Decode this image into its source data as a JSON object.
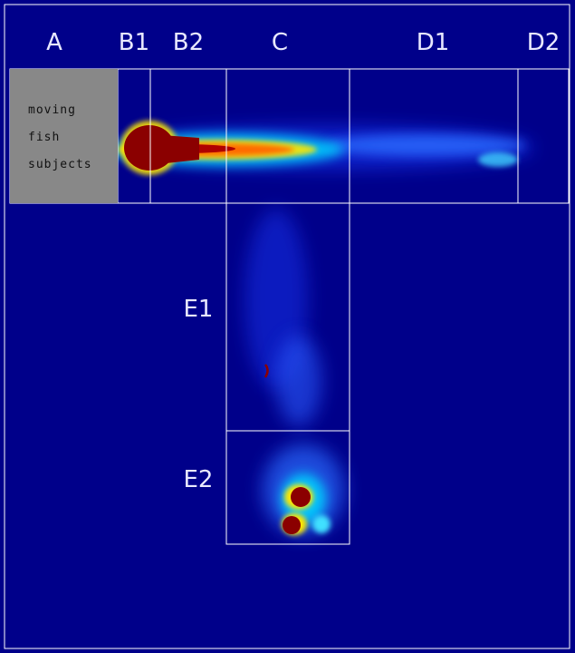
{
  "zones": {
    "A": "A",
    "B1": "B1",
    "B2": "B2",
    "C": "C",
    "D1": "D1",
    "D2": "D2",
    "E1": "E1",
    "E2": "E2"
  },
  "legend": {
    "line1": "moving",
    "line2": "fish",
    "line3": "subjects"
  },
  "colors": {
    "background": "#00008a",
    "grid": "#ffffff",
    "legend_fill": "#888888",
    "heat_low": "#1e3cff",
    "heat_mid": "#00e0ff",
    "heat_high": "#ffe600",
    "heat_max": "#8b0000"
  }
}
